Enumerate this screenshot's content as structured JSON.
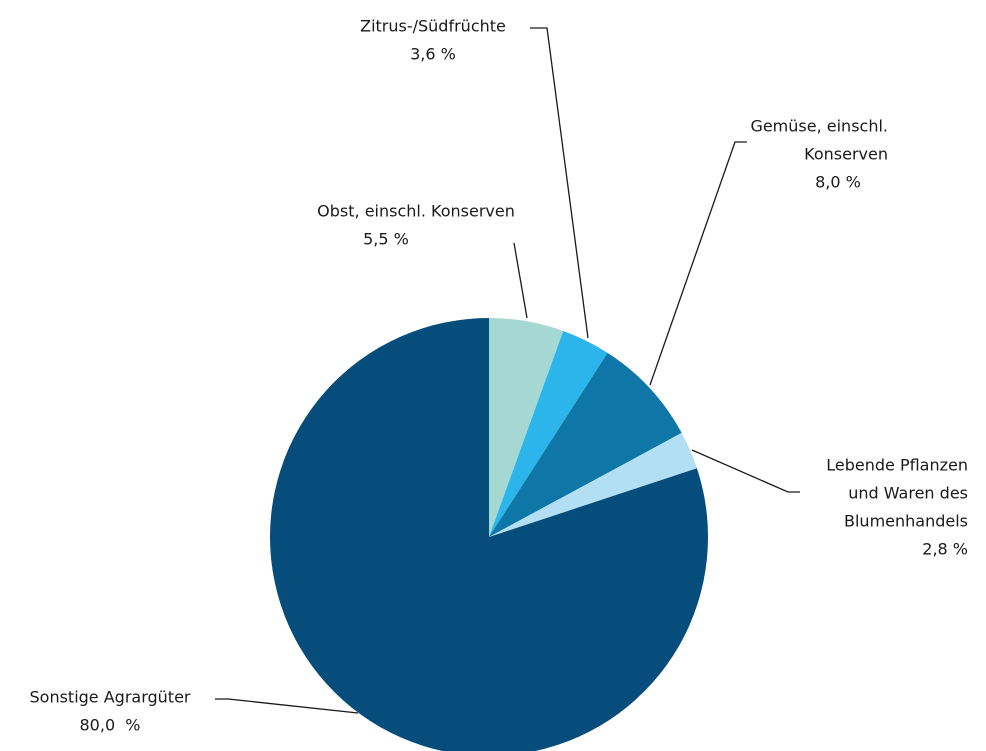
{
  "chart_data": {
    "type": "pie",
    "categories": [
      [
        "Obst, einschl. Konserven"
      ],
      [
        "Zitrus-/Südfrüchte"
      ],
      [
        "Gemüse, einschl.",
        "Konserven"
      ],
      [
        "Lebende Pflanzen",
        "und Waren des",
        "Blumenhandels"
      ],
      [
        "Sonstige Agrargüter"
      ]
    ],
    "values": [
      5.5,
      3.6,
      8.0,
      2.8,
      80.0
    ],
    "value_labels": [
      "5,5 %",
      "3,6 %",
      "8,0 %",
      "2,8 %",
      "80,0  %"
    ],
    "colors": [
      "#a5d8d3",
      "#2bb5ea",
      "#0f76a8",
      "#b3dff5",
      "#064d7c"
    ]
  }
}
